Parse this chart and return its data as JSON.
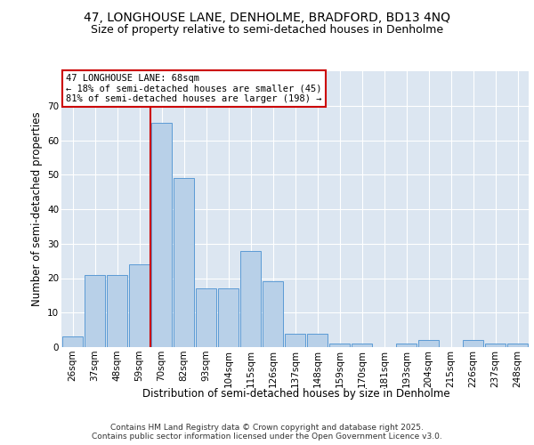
{
  "title_line1": "47, LONGHOUSE LANE, DENHOLME, BRADFORD, BD13 4NQ",
  "title_line2": "Size of property relative to semi-detached houses in Denholme",
  "xlabel": "Distribution of semi-detached houses by size in Denholme",
  "ylabel": "Number of semi-detached properties",
  "bar_labels": [
    "26sqm",
    "37sqm",
    "48sqm",
    "59sqm",
    "70sqm",
    "82sqm",
    "93sqm",
    "104sqm",
    "115sqm",
    "126sqm",
    "137sqm",
    "148sqm",
    "159sqm",
    "170sqm",
    "181sqm",
    "193sqm",
    "204sqm",
    "215sqm",
    "226sqm",
    "237sqm",
    "248sqm"
  ],
  "bar_values": [
    3,
    21,
    21,
    24,
    65,
    49,
    17,
    17,
    28,
    19,
    4,
    4,
    1,
    1,
    0,
    1,
    2,
    0,
    2,
    1,
    1
  ],
  "bar_color": "#b8d0e8",
  "bar_edge_color": "#5b9bd5",
  "property_line_index": 4,
  "annotation_text": "47 LONGHOUSE LANE: 68sqm\n← 18% of semi-detached houses are smaller (45)\n81% of semi-detached houses are larger (198) →",
  "annotation_box_color": "#ffffff",
  "annotation_box_edge_color": "#cc0000",
  "line_color": "#cc0000",
  "ylim": [
    0,
    80
  ],
  "yticks": [
    0,
    10,
    20,
    30,
    40,
    50,
    60,
    70
  ],
  "background_color": "#dce6f1",
  "footer_text": "Contains HM Land Registry data © Crown copyright and database right 2025.\nContains public sector information licensed under the Open Government Licence v3.0.",
  "title_fontsize": 10,
  "subtitle_fontsize": 9,
  "axis_label_fontsize": 8.5,
  "tick_fontsize": 7.5,
  "annotation_fontsize": 7.5,
  "footer_fontsize": 6.5
}
